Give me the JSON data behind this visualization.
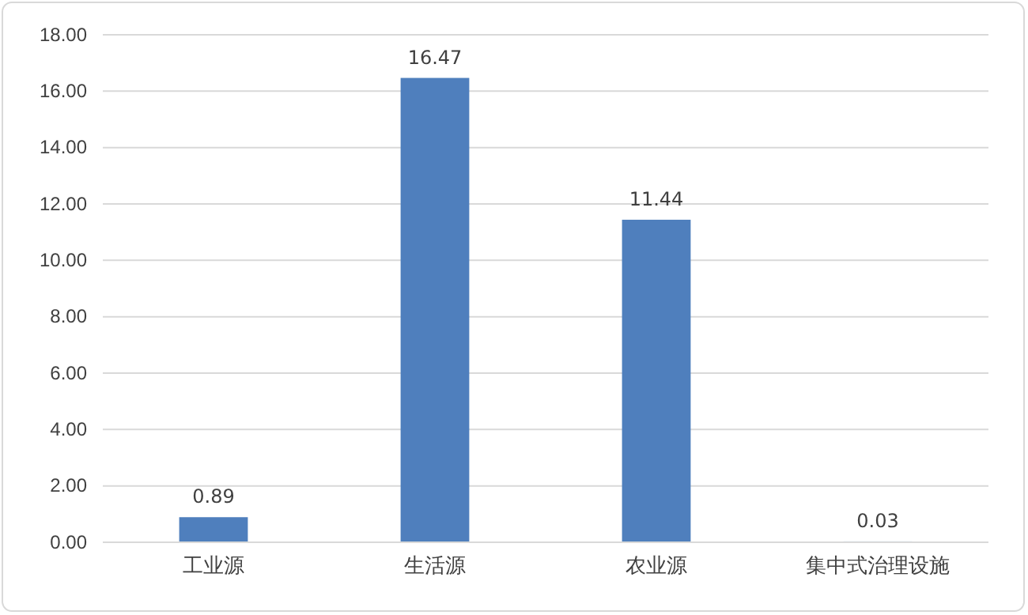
{
  "chart_data": {
    "type": "bar",
    "categories": [
      "工业源",
      "生活源",
      "农业源",
      "集中式治理设施"
    ],
    "values": [
      0.89,
      16.47,
      11.44,
      0.03
    ],
    "color": "#4f7fbd",
    "ylim": [
      0,
      18
    ],
    "yticks": [
      {
        "value": 0,
        "label": "0.00"
      },
      {
        "value": 2,
        "label": "2.00"
      },
      {
        "value": 4,
        "label": "4.00"
      },
      {
        "value": 6,
        "label": "6.00"
      },
      {
        "value": 8,
        "label": "8.00"
      },
      {
        "value": 10,
        "label": "10.00"
      },
      {
        "value": 12,
        "label": "12.00"
      },
      {
        "value": 14,
        "label": "14.00"
      },
      {
        "value": 16,
        "label": "16.00"
      },
      {
        "value": 18,
        "label": "18.00"
      }
    ],
    "grid": "y",
    "data_labels": true
  }
}
